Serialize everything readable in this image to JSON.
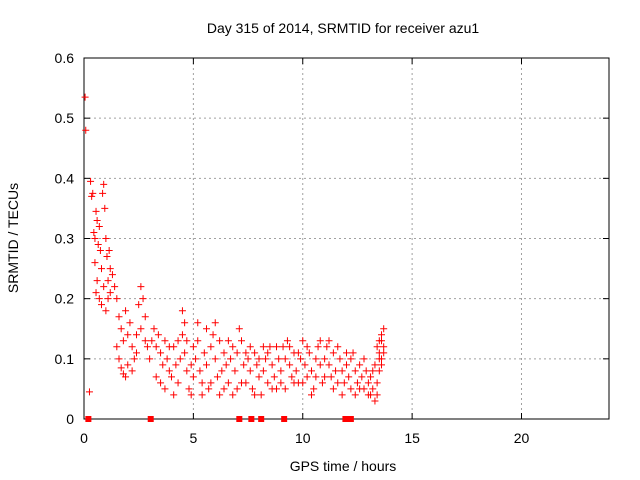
{
  "chart_data": {
    "type": "scatter",
    "title": "Day 315 of 2014, SRMTID for receiver azu1",
    "xlabel": "GPS time / hours",
    "ylabel": "SRMTID / TECUs",
    "xlim": [
      0,
      24
    ],
    "ylim": [
      0,
      0.6
    ],
    "xticks": [
      0,
      5,
      10,
      15,
      20
    ],
    "xtick_labels": [
      "0",
      "5",
      "10",
      "15",
      "20"
    ],
    "yticks": [
      0,
      0.1,
      0.2,
      0.3,
      0.4,
      0.5,
      0.6
    ],
    "ytick_labels": [
      "0",
      "0.1",
      "0.2",
      "0.3",
      "0.4",
      "0.5",
      "0.6"
    ],
    "grid": true,
    "series": [
      {
        "name": "SRMTID",
        "marker": "plus",
        "color": "#ff0000",
        "points": [
          [
            0.05,
            0.535
          ],
          [
            0.08,
            0.48
          ],
          [
            0.25,
            0.045
          ],
          [
            0.3,
            0.395
          ],
          [
            0.35,
            0.37
          ],
          [
            0.4,
            0.375
          ],
          [
            0.45,
            0.31
          ],
          [
            0.5,
            0.3
          ],
          [
            0.55,
            0.345
          ],
          [
            0.6,
            0.33
          ],
          [
            0.65,
            0.29
          ],
          [
            0.7,
            0.32
          ],
          [
            0.75,
            0.28
          ],
          [
            0.8,
            0.25
          ],
          [
            0.85,
            0.375
          ],
          [
            0.9,
            0.39
          ],
          [
            0.95,
            0.35
          ],
          [
            1.0,
            0.3
          ],
          [
            1.05,
            0.27
          ],
          [
            1.1,
            0.23
          ],
          [
            1.15,
            0.28
          ],
          [
            1.2,
            0.25
          ],
          [
            0.5,
            0.26
          ],
          [
            0.55,
            0.21
          ],
          [
            0.6,
            0.23
          ],
          [
            0.7,
            0.2
          ],
          [
            0.8,
            0.19
          ],
          [
            0.9,
            0.22
          ],
          [
            1.0,
            0.18
          ],
          [
            1.1,
            0.2
          ],
          [
            1.2,
            0.21
          ],
          [
            1.3,
            0.24
          ],
          [
            1.4,
            0.22
          ],
          [
            1.5,
            0.2
          ],
          [
            1.6,
            0.17
          ],
          [
            1.7,
            0.15
          ],
          [
            1.8,
            0.13
          ],
          [
            1.9,
            0.18
          ],
          [
            2.0,
            0.14
          ],
          [
            2.1,
            0.16
          ],
          [
            2.2,
            0.12
          ],
          [
            2.3,
            0.1
          ],
          [
            2.4,
            0.14
          ],
          [
            2.5,
            0.19
          ],
          [
            2.6,
            0.22
          ],
          [
            2.7,
            0.2
          ],
          [
            2.8,
            0.17
          ],
          [
            2.9,
            0.12
          ],
          [
            3.0,
            0.1
          ],
          [
            3.1,
            0.13
          ],
          [
            1.5,
            0.12
          ],
          [
            1.6,
            0.1
          ],
          [
            1.7,
            0.085
          ],
          [
            1.8,
            0.075
          ],
          [
            1.9,
            0.07
          ],
          [
            2.0,
            0.09
          ],
          [
            2.2,
            0.08
          ],
          [
            2.4,
            0.11
          ],
          [
            2.6,
            0.15
          ],
          [
            2.8,
            0.13
          ],
          [
            3.2,
            0.15
          ],
          [
            3.3,
            0.12
          ],
          [
            3.4,
            0.14
          ],
          [
            3.5,
            0.11
          ],
          [
            3.6,
            0.09
          ],
          [
            3.7,
            0.13
          ],
          [
            3.8,
            0.1
          ],
          [
            3.9,
            0.08
          ],
          [
            4.0,
            0.07
          ],
          [
            4.1,
            0.12
          ],
          [
            4.2,
            0.09
          ],
          [
            4.3,
            0.06
          ],
          [
            4.4,
            0.1
          ],
          [
            4.5,
            0.14
          ],
          [
            4.6,
            0.11
          ],
          [
            4.7,
            0.08
          ],
          [
            4.8,
            0.05
          ],
          [
            4.9,
            0.09
          ],
          [
            5.0,
            0.12
          ],
          [
            3.3,
            0.07
          ],
          [
            3.5,
            0.06
          ],
          [
            3.7,
            0.05
          ],
          [
            3.9,
            0.12
          ],
          [
            4.1,
            0.04
          ],
          [
            4.3,
            0.13
          ],
          [
            4.5,
            0.18
          ],
          [
            4.6,
            0.16
          ],
          [
            4.7,
            0.13
          ],
          [
            4.9,
            0.04
          ],
          [
            5.0,
            0.07
          ],
          [
            5.1,
            0.1
          ],
          [
            5.2,
            0.13
          ],
          [
            5.3,
            0.08
          ],
          [
            5.4,
            0.06
          ],
          [
            5.5,
            0.11
          ],
          [
            5.6,
            0.09
          ],
          [
            5.7,
            0.05
          ],
          [
            5.8,
            0.12
          ],
          [
            5.9,
            0.14
          ],
          [
            6.0,
            0.1
          ],
          [
            6.1,
            0.07
          ],
          [
            6.2,
            0.04
          ],
          [
            6.3,
            0.08
          ],
          [
            6.4,
            0.11
          ],
          [
            6.5,
            0.09
          ],
          [
            6.6,
            0.06
          ],
          [
            6.7,
            0.1
          ],
          [
            6.8,
            0.12
          ],
          [
            6.9,
            0.08
          ],
          [
            7.0,
            0.05
          ],
          [
            5.2,
            0.16
          ],
          [
            5.4,
            0.04
          ],
          [
            5.6,
            0.15
          ],
          [
            5.8,
            0.06
          ],
          [
            6.0,
            0.16
          ],
          [
            6.2,
            0.13
          ],
          [
            6.4,
            0.05
          ],
          [
            6.6,
            0.13
          ],
          [
            6.8,
            0.04
          ],
          [
            7.0,
            0.11
          ],
          [
            7.1,
            0.15
          ],
          [
            7.2,
            0.13
          ],
          [
            7.3,
            0.09
          ],
          [
            7.4,
            0.06
          ],
          [
            7.5,
            0.1
          ],
          [
            7.6,
            0.08
          ],
          [
            7.7,
            0.05
          ],
          [
            7.8,
            0.11
          ],
          [
            7.9,
            0.09
          ],
          [
            8.0,
            0.07
          ],
          [
            8.1,
            0.04
          ],
          [
            8.2,
            0.08
          ],
          [
            8.3,
            0.1
          ],
          [
            8.4,
            0.06
          ],
          [
            8.5,
            0.12
          ],
          [
            8.6,
            0.09
          ],
          [
            8.7,
            0.07
          ],
          [
            8.8,
            0.05
          ],
          [
            8.9,
            0.1
          ],
          [
            9.0,
            0.08
          ],
          [
            7.2,
            0.06
          ],
          [
            7.4,
            0.11
          ],
          [
            7.6,
            0.12
          ],
          [
            7.8,
            0.04
          ],
          [
            8.0,
            0.1
          ],
          [
            8.2,
            0.12
          ],
          [
            8.4,
            0.11
          ],
          [
            8.6,
            0.05
          ],
          [
            8.8,
            0.12
          ],
          [
            9.0,
            0.06
          ],
          [
            9.1,
            0.12
          ],
          [
            9.2,
            0.1
          ],
          [
            9.3,
            0.13
          ],
          [
            9.4,
            0.09
          ],
          [
            9.5,
            0.07
          ],
          [
            9.6,
            0.11
          ],
          [
            9.7,
            0.08
          ],
          [
            9.8,
            0.06
          ],
          [
            9.9,
            0.1
          ],
          [
            10.0,
            0.13
          ],
          [
            10.1,
            0.09
          ],
          [
            10.2,
            0.07
          ],
          [
            10.3,
            0.11
          ],
          [
            10.4,
            0.08
          ],
          [
            10.5,
            0.05
          ],
          [
            10.6,
            0.1
          ],
          [
            10.7,
            0.12
          ],
          [
            10.8,
            0.09
          ],
          [
            10.9,
            0.06
          ],
          [
            11.0,
            0.1
          ],
          [
            9.2,
            0.05
          ],
          [
            9.4,
            0.12
          ],
          [
            9.6,
            0.06
          ],
          [
            9.8,
            0.11
          ],
          [
            10.0,
            0.06
          ],
          [
            10.2,
            0.12
          ],
          [
            10.4,
            0.04
          ],
          [
            10.6,
            0.07
          ],
          [
            10.8,
            0.13
          ],
          [
            11.0,
            0.07
          ],
          [
            11.1,
            0.12
          ],
          [
            11.2,
            0.09
          ],
          [
            11.3,
            0.07
          ],
          [
            11.4,
            0.11
          ],
          [
            11.5,
            0.08
          ],
          [
            11.6,
            0.06
          ],
          [
            11.7,
            0.1
          ],
          [
            11.8,
            0.08
          ],
          [
            11.9,
            0.06
          ],
          [
            12.0,
            0.09
          ],
          [
            12.1,
            0.07
          ],
          [
            12.2,
            0.05
          ],
          [
            12.3,
            0.11
          ],
          [
            12.4,
            0.08
          ],
          [
            12.5,
            0.06
          ],
          [
            12.6,
            0.09
          ],
          [
            12.7,
            0.07
          ],
          [
            12.8,
            0.05
          ],
          [
            12.9,
            0.08
          ],
          [
            13.0,
            0.06
          ],
          [
            11.2,
            0.13
          ],
          [
            11.4,
            0.05
          ],
          [
            11.6,
            0.12
          ],
          [
            11.8,
            0.04
          ],
          [
            12.0,
            0.11
          ],
          [
            12.2,
            0.1
          ],
          [
            12.4,
            0.04
          ],
          [
            12.6,
            0.05
          ],
          [
            12.8,
            0.1
          ],
          [
            13.0,
            0.04
          ],
          [
            13.1,
            0.07
          ],
          [
            13.2,
            0.05
          ],
          [
            13.3,
            0.09
          ],
          [
            13.4,
            0.06
          ],
          [
            13.5,
            0.11
          ],
          [
            13.6,
            0.13
          ],
          [
            13.7,
            0.15
          ],
          [
            13.6,
            0.1
          ],
          [
            13.5,
            0.08
          ],
          [
            13.4,
            0.12
          ],
          [
            13.3,
            0.03
          ],
          [
            13.2,
            0.08
          ],
          [
            13.1,
            0.04
          ],
          [
            13.6,
            0.09
          ],
          [
            13.7,
            0.12
          ],
          [
            13.6,
            0.14
          ],
          [
            13.5,
            0.1
          ],
          [
            13.4,
            0.04
          ],
          [
            13.7,
            0.11
          ],
          [
            13.5,
            0.13
          ]
        ]
      },
      {
        "name": "zero markers",
        "marker": "square",
        "color": "#ff0000",
        "points": [
          [
            0.2,
            0
          ],
          [
            3.05,
            0
          ],
          [
            7.1,
            0
          ],
          [
            7.65,
            0
          ],
          [
            8.1,
            0
          ],
          [
            9.15,
            0
          ],
          [
            11.95,
            0
          ],
          [
            12.2,
            0
          ]
        ]
      }
    ]
  }
}
